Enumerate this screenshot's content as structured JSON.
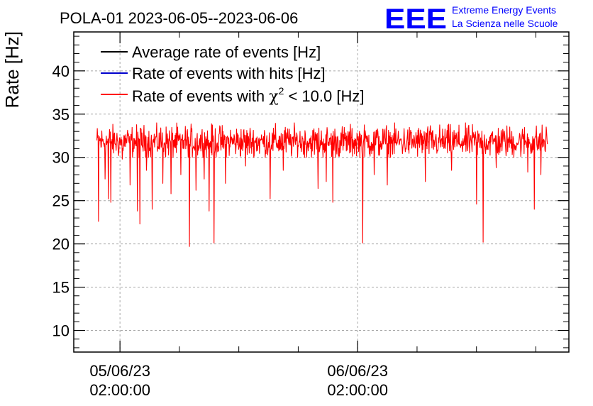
{
  "logo": {
    "letters": "EEE",
    "line1": "Extreme Energy Events",
    "line2": "La Scienza nelle Scuole",
    "color": "#0000ff"
  },
  "chart_data": {
    "type": "line",
    "title": "POLA-01 2023-06-05--2023-06-06",
    "xlabel": "",
    "ylabel": "Rate [Hz]",
    "ylim": [
      7.5,
      44.5
    ],
    "xlim": [
      "2023-06-04 21:20:00",
      "2023-06-06 23:20:00"
    ],
    "yticks": [
      10,
      15,
      20,
      25,
      30,
      35,
      40
    ],
    "xticks": [
      {
        "date": "05/06/23",
        "time": "02:00:00",
        "at": "2023-06-05 02:00:00"
      },
      {
        "date": "06/06/23",
        "time": "02:00:00",
        "at": "2023-06-06 02:00:00"
      }
    ],
    "grid": true,
    "legend": {
      "placement": "top-left",
      "entries": [
        {
          "label": "Average rate of events [Hz]",
          "color": "#000000"
        },
        {
          "label": "Rate of events with hits [Hz]",
          "color": "#0000cc"
        },
        {
          "label_prefix": "Rate of events with ",
          "label_symbol": "χ",
          "label_sup": "2",
          "label_suffix": " < 10.0 [Hz]",
          "color": "#ff0000"
        }
      ]
    },
    "series": [
      {
        "name": "Rate of events with χ2 < 10.0 [Hz]",
        "color": "#ff0000",
        "x_start": "2023-06-04 23:40:00",
        "x_end": "2023-06-06 21:10:00",
        "baseline": 31.8,
        "range": [
          30.0,
          34.0
        ],
        "dips": [
          {
            "t": "2023-06-04 23:50:00",
            "y": 22.6
          },
          {
            "t": "2023-06-05 00:30:00",
            "y": 27.5
          },
          {
            "t": "2023-06-05 00:50:00",
            "y": 25.2
          },
          {
            "t": "2023-06-05 01:05:00",
            "y": 24.8
          },
          {
            "t": "2023-06-05 02:15:00",
            "y": 29.8
          },
          {
            "t": "2023-06-05 03:00:00",
            "y": 26.8
          },
          {
            "t": "2023-06-05 03:45:00",
            "y": 23.8
          },
          {
            "t": "2023-06-05 04:00:00",
            "y": 22.3
          },
          {
            "t": "2023-06-05 04:40:00",
            "y": 28.5
          },
          {
            "t": "2023-06-05 05:15:00",
            "y": 24.0
          },
          {
            "t": "2023-06-05 06:20:00",
            "y": 27.0
          },
          {
            "t": "2023-06-05 07:10:00",
            "y": 25.8
          },
          {
            "t": "2023-06-05 08:10:00",
            "y": 28.0
          },
          {
            "t": "2023-06-05 09:00:00",
            "y": 19.7
          },
          {
            "t": "2023-06-05 09:40:00",
            "y": 26.2
          },
          {
            "t": "2023-06-05 10:30:00",
            "y": 27.5
          },
          {
            "t": "2023-06-05 11:00:00",
            "y": 23.8
          },
          {
            "t": "2023-06-05 11:30:00",
            "y": 20.1
          },
          {
            "t": "2023-06-05 12:40:00",
            "y": 27.0
          },
          {
            "t": "2023-06-05 14:40:00",
            "y": 29.0
          },
          {
            "t": "2023-06-05 17:10:00",
            "y": 25.2
          },
          {
            "t": "2023-06-05 18:30:00",
            "y": 28.5
          },
          {
            "t": "2023-06-05 22:00:00",
            "y": 26.4
          },
          {
            "t": "2023-06-05 22:50:00",
            "y": 27.2
          },
          {
            "t": "2023-06-05 23:30:00",
            "y": 24.8
          },
          {
            "t": "2023-06-06 02:30:00",
            "y": 20.1
          },
          {
            "t": "2023-06-06 03:40:00",
            "y": 28.0
          },
          {
            "t": "2023-06-06 05:00:00",
            "y": 26.8
          },
          {
            "t": "2023-06-06 08:50:00",
            "y": 27.2
          },
          {
            "t": "2023-06-06 11:30:00",
            "y": 28.5
          },
          {
            "t": "2023-06-06 14:00:00",
            "y": 24.6
          },
          {
            "t": "2023-06-06 14:40:00",
            "y": 20.2
          },
          {
            "t": "2023-06-06 16:00:00",
            "y": 28.8
          },
          {
            "t": "2023-06-06 19:10:00",
            "y": 28.3
          },
          {
            "t": "2023-06-06 19:50:00",
            "y": 24.0
          },
          {
            "t": "2023-06-06 20:30:00",
            "y": 28.0
          }
        ]
      }
    ]
  }
}
